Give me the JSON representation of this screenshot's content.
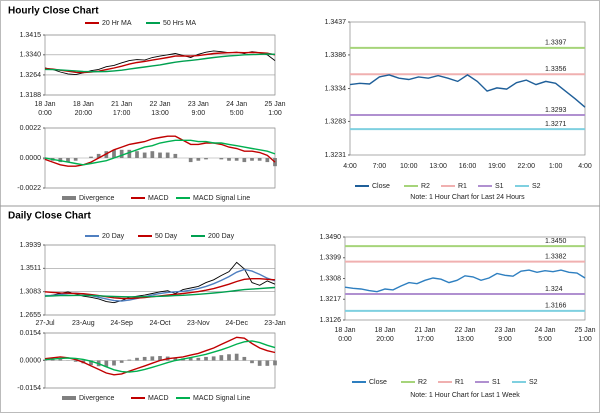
{
  "sections": [
    {
      "title": "Hourly Close Chart"
    },
    {
      "title": "Daily Close Chart"
    }
  ],
  "chart_data": [
    {
      "type": "line",
      "categories": [
        "18 Jan\n0:00",
        null,
        null,
        null,
        null,
        "18 Jan\n20:00",
        null,
        null,
        null,
        null,
        "21 Jan\n17:00",
        null,
        null,
        null,
        null,
        "22 Jan\n13:00",
        null,
        null,
        null,
        null,
        "23 Jan\n9:00",
        null,
        null,
        null,
        null,
        "24 Jan\n5:00",
        null,
        null,
        null,
        null,
        "25 Jan\n1:00"
      ],
      "values": [
        1.329,
        1.3285,
        1.3275,
        1.3268,
        1.3265,
        1.3272,
        1.328,
        1.3285,
        1.3295,
        1.33,
        1.331,
        1.3318,
        1.3322,
        1.332,
        1.333,
        1.3335,
        1.334,
        1.3345,
        1.3338,
        1.333,
        1.3342,
        1.335,
        1.3355,
        1.3352,
        1.3348,
        1.335,
        1.3345,
        1.3352,
        1.3348,
        1.334,
        1.3318
      ],
      "color": "#000000",
      "series": [
        {
          "name": "20 Hr MA",
          "color": "#c00000",
          "values": [
            1.3288,
            1.3286,
            1.3282,
            1.3278,
            1.3274,
            1.3273,
            1.3275,
            1.3278,
            1.3284,
            1.329,
            1.3297,
            1.3305,
            1.3311,
            1.3315,
            1.332,
            1.3325,
            1.333,
            1.3335,
            1.3336,
            1.3335,
            1.3337,
            1.3341,
            1.3345,
            1.3347,
            1.3348,
            1.3349,
            1.3348,
            1.3349,
            1.3348,
            1.3346,
            1.334
          ]
        },
        {
          "name": "50 Hrs MA",
          "color": "#00a050",
          "values": [
            1.3285,
            1.3284,
            1.3283,
            1.3281,
            1.3279,
            1.3277,
            1.3276,
            1.3276,
            1.3277,
            1.3279,
            1.3282,
            1.3286,
            1.329,
            1.3294,
            1.3298,
            1.3302,
            1.3307,
            1.3312,
            1.3316,
            1.3319,
            1.3322,
            1.3326,
            1.333,
            1.3333,
            1.3336,
            1.3338,
            1.334,
            1.3341,
            1.3342,
            1.3343,
            1.3342
          ]
        }
      ],
      "ylim": [
        1.3188,
        1.3415
      ],
      "yticks": [
        1.3188,
        1.3264,
        {
          "value": 1.334,
          "label": "1.3340"
        },
        1.3415
      ],
      "grid": true,
      "legend": "top"
    },
    {
      "type": "combo",
      "series": [
        {
          "name": "Divergence",
          "color": "#808080",
          "mark": "bar",
          "values": [
            -0.0001,
            -0.0002,
            -0.0003,
            -0.0003,
            -0.0002,
            0,
            0.0001,
            0.0003,
            0.0005,
            0.0006,
            0.0006,
            0.0006,
            0.0005,
            0.0004,
            0.0005,
            0.0004,
            0.0004,
            0.0003,
            0,
            -0.0003,
            -0.0002,
            -0.0001,
            0,
            -0.0001,
            -0.0002,
            -0.0002,
            -0.0003,
            -0.0002,
            -0.0002,
            -0.0003,
            -0.0006
          ]
        },
        {
          "name": "MACD",
          "color": "#c00000",
          "mark": "line",
          "values": [
            -0.0001,
            -0.0003,
            -0.0005,
            -0.0006,
            -0.0006,
            -0.0005,
            -0.0003,
            0,
            0.0003,
            0.0006,
            0.0008,
            0.001,
            0.0011,
            0.0012,
            0.0014,
            0.0015,
            0.0016,
            0.0016,
            0.0013,
            0.001,
            0.001,
            0.0011,
            0.0011,
            0.001,
            0.0008,
            0.0007,
            0.0005,
            0.0005,
            0.0004,
            0.0002,
            -0.0003
          ]
        },
        {
          "name": "MACD Signal Line",
          "color": "#00b050",
          "mark": "line",
          "values": [
            0,
            -0.0001,
            -0.0002,
            -0.0003,
            -0.0004,
            -0.0005,
            -0.0004,
            -0.0003,
            -0.0002,
            0,
            0.0002,
            0.0004,
            0.0006,
            0.0008,
            0.0009,
            0.0011,
            0.0012,
            0.0013,
            0.0013,
            0.0013,
            0.0012,
            0.0012,
            0.0011,
            0.0011,
            0.001,
            0.0009,
            0.0008,
            0.0007,
            0.0006,
            0.0005,
            0.0003
          ]
        }
      ],
      "ylim": [
        -0.0022,
        0.0022
      ],
      "yticks": [
        -0.0022,
        {
          "value": 0,
          "label": "0.0000"
        },
        0.0022
      ],
      "grid": true,
      "legend": "bottom"
    },
    {
      "type": "line",
      "categories": [
        "4:00",
        null,
        null,
        "7:00",
        null,
        null,
        "10:00",
        null,
        null,
        "13:00",
        null,
        null,
        "16:00",
        null,
        null,
        "19:00",
        null,
        null,
        "22:00",
        null,
        null,
        "1:00",
        null,
        null,
        "4:00"
      ],
      "series": [
        {
          "name": "Close",
          "color": "#1f5f99",
          "values": [
            1.334,
            1.3342,
            1.3341,
            1.3352,
            1.3355,
            1.335,
            1.3348,
            1.3352,
            1.335,
            1.3354,
            1.335,
            1.3345,
            1.3355,
            1.3345,
            1.333,
            1.3335,
            1.3333,
            1.3343,
            1.3347,
            1.334,
            1.3345,
            1.3342,
            1.333,
            1.3318,
            1.3305
          ]
        }
      ],
      "levels": [
        {
          "name": "R2",
          "color": "#a6d47a",
          "value": 1.3397
        },
        {
          "name": "R1",
          "color": "#f0b0b0",
          "value": 1.3356
        },
        {
          "name": "S1",
          "color": "#b090d0",
          "value": 1.3293
        },
        {
          "name": "S2",
          "color": "#7fd0e0",
          "value": 1.3271
        }
      ],
      "ylim": [
        1.3231,
        1.3437
      ],
      "yticks": [
        1.3231,
        1.3283,
        1.3334,
        1.3386,
        1.3437
      ],
      "grid": false,
      "legend": "bottom",
      "note": "Note: 1 Hour Chart for Last 24 Hours"
    },
    {
      "type": "line",
      "categories": [
        "27-Jul",
        null,
        null,
        null,
        null,
        "23-Aug",
        null,
        null,
        null,
        null,
        "24-Sep",
        null,
        null,
        null,
        null,
        "24-Oct",
        null,
        null,
        null,
        null,
        "23-Nov",
        null,
        null,
        null,
        null,
        "24-Dec",
        null,
        null,
        null,
        null,
        "23-Jan"
      ],
      "values": [
        1.3,
        1.302,
        1.305,
        1.308,
        1.304,
        1.3,
        1.298,
        1.295,
        1.29,
        1.288,
        1.292,
        1.298,
        1.3,
        1.302,
        1.305,
        1.308,
        1.31,
        1.305,
        1.312,
        1.315,
        1.318,
        1.325,
        1.33,
        1.338,
        1.345,
        1.362,
        1.35,
        1.325,
        1.32,
        1.328,
        1.322
      ],
      "color": "#000000",
      "series": [
        {
          "name": "20 Day",
          "color": "#4f7fc0",
          "values": [
            1.301,
            1.3015,
            1.303,
            1.305,
            1.3055,
            1.304,
            1.301,
            1.298,
            1.295,
            1.292,
            1.291,
            1.293,
            1.296,
            1.299,
            1.302,
            1.305,
            1.307,
            1.308,
            1.309,
            1.311,
            1.314,
            1.318,
            1.323,
            1.329,
            1.336,
            1.344,
            1.349,
            1.346,
            1.34,
            1.333,
            1.328
          ]
        },
        {
          "name": "50 Day",
          "color": "#c00000",
          "values": [
            1.308,
            1.307,
            1.306,
            1.3055,
            1.305,
            1.3045,
            1.303,
            1.301,
            1.299,
            1.297,
            1.296,
            1.296,
            1.2965,
            1.2975,
            1.299,
            1.3005,
            1.302,
            1.3035,
            1.305,
            1.3065,
            1.3085,
            1.311,
            1.314,
            1.318,
            1.322,
            1.327,
            1.331,
            1.332,
            1.332,
            1.331,
            1.33
          ]
        },
        {
          "name": "200 Day",
          "color": "#00a050",
          "values": [
            1.3,
            1.3005,
            1.301,
            1.3012,
            1.3015,
            1.3015,
            1.3012,
            1.3008,
            1.3,
            1.2995,
            1.299,
            1.2988,
            1.2988,
            1.299,
            1.2993,
            1.2998,
            1.3003,
            1.301,
            1.3017,
            1.3025,
            1.3035,
            1.3045,
            1.3058,
            1.3072,
            1.3088,
            1.3105,
            1.312,
            1.313,
            1.314,
            1.315,
            1.316
          ]
        }
      ],
      "ylim": [
        1.2655,
        1.3939
      ],
      "yticks": [
        1.2655,
        1.3083,
        1.3511,
        1.3939
      ],
      "grid": true,
      "legend": "top"
    },
    {
      "type": "combo",
      "series": [
        {
          "name": "Divergence",
          "color": "#808080",
          "mark": "bar",
          "values": [
            0.0005,
            0.0007,
            0.0008,
            0.0001,
            -0.0007,
            -0.0016,
            -0.0026,
            -0.0032,
            -0.0035,
            -0.0028,
            -0.0013,
            0.0005,
            0.0015,
            0.002,
            0.0023,
            0.0025,
            0.0022,
            0.0015,
            0.0012,
            0.0014,
            0.0015,
            0.002,
            0.0023,
            0.003,
            0.0035,
            0.0038,
            0.002,
            -0.0015,
            -0.003,
            -0.003,
            -0.0027
          ]
        },
        {
          "name": "MACD",
          "color": "#c00000",
          "mark": "line",
          "values": [
            0.001,
            0.0015,
            0.002,
            0.0015,
            0.0005,
            -0.001,
            -0.003,
            -0.005,
            -0.007,
            -0.008,
            -0.0075,
            -0.006,
            -0.0045,
            -0.003,
            -0.0015,
            0,
            0.001,
            0.0015,
            0.002,
            0.003,
            0.004,
            0.0055,
            0.007,
            0.009,
            0.011,
            0.013,
            0.0125,
            0.0095,
            0.007,
            0.0055,
            0.0045
          ]
        },
        {
          "name": "MACD Signal Line",
          "color": "#00b050",
          "mark": "line",
          "values": [
            0.0005,
            0.0008,
            0.0012,
            0.0014,
            0.0012,
            0.0006,
            -0.0004,
            -0.0018,
            -0.0035,
            -0.0052,
            -0.0062,
            -0.0065,
            -0.006,
            -0.005,
            -0.0038,
            -0.0025,
            -0.0012,
            0,
            0.0008,
            0.0016,
            0.0025,
            0.0035,
            0.0047,
            0.006,
            0.0075,
            0.0092,
            0.0105,
            0.011,
            0.01,
            0.0085,
            0.0072
          ]
        }
      ],
      "ylim": [
        -0.0154,
        0.0154
      ],
      "yticks": [
        -0.0154,
        {
          "value": 0,
          "label": "0.0000"
        },
        0.0154
      ],
      "grid": true,
      "legend": "bottom"
    },
    {
      "type": "line",
      "categories": [
        "18 Jan\n0:00",
        null,
        null,
        null,
        null,
        "18 Jan\n20:00",
        null,
        null,
        null,
        null,
        "21 Jan\n17:00",
        null,
        null,
        null,
        null,
        "22 Jan\n13:00",
        null,
        null,
        null,
        null,
        "23 Jan\n9:00",
        null,
        null,
        null,
        null,
        "24 Jan\n5:00",
        null,
        null,
        null,
        null,
        "25 Jan\n1:00"
      ],
      "series": [
        {
          "name": "Close",
          "color": "#2e7fc0",
          "values": [
            1.327,
            1.3265,
            1.3262,
            1.3255,
            1.325,
            1.3262,
            1.3258,
            1.3275,
            1.329,
            1.3285,
            1.33,
            1.331,
            1.3305,
            1.329,
            1.33,
            1.332,
            1.3315,
            1.33,
            1.331,
            1.333,
            1.3322,
            1.3318,
            1.334,
            1.3345,
            1.3335,
            1.3342,
            1.3338,
            1.3345,
            1.3335,
            1.3332,
            1.331
          ]
        }
      ],
      "levels": [
        {
          "name": "R2",
          "color": "#a6d47a",
          "value": 1.345,
          "value_label": "1.3450"
        },
        {
          "name": "R1",
          "color": "#f0b0b0",
          "value": 1.3382
        },
        {
          "name": "S1",
          "color": "#b090d0",
          "value": 1.324
        },
        {
          "name": "S2",
          "color": "#7fd0e0",
          "value": 1.3166
        }
      ],
      "ylim": [
        1.3126,
        1.349
      ],
      "yticks": [
        1.3126,
        1.3217,
        1.3308,
        1.3399,
        {
          "value": 1.349,
          "label": "1.3490"
        }
      ],
      "grid": false,
      "legend": "bottom",
      "note": "Note: 1 Hour Chart for Last 1 Week"
    }
  ]
}
